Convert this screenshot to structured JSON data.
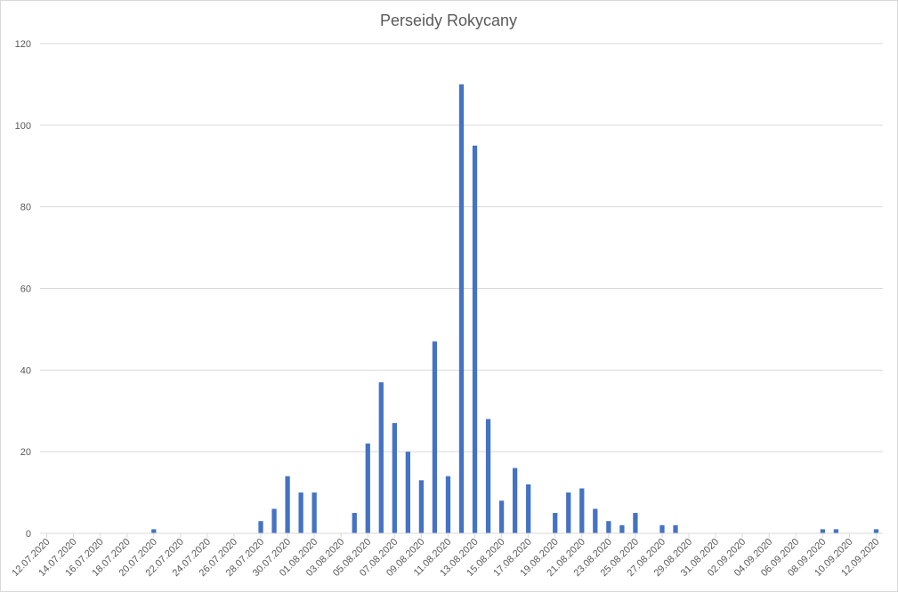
{
  "chart_data": {
    "type": "bar",
    "title": "Perseidy Rokycany",
    "xlabel": "",
    "ylabel": "",
    "ylim": [
      0,
      120
    ],
    "yticks": [
      0,
      20,
      40,
      60,
      80,
      100,
      120
    ],
    "grid": true,
    "legend": "none",
    "bar_color": "#4472c4",
    "categories": [
      "12.07.2020",
      "13.07.2020",
      "14.07.2020",
      "15.07.2020",
      "16.07.2020",
      "17.07.2020",
      "18.07.2020",
      "19.07.2020",
      "20.07.2020",
      "21.07.2020",
      "22.07.2020",
      "23.07.2020",
      "24.07.2020",
      "25.07.2020",
      "26.07.2020",
      "27.07.2020",
      "28.07.2020",
      "29.07.2020",
      "30.07.2020",
      "31.07.2020",
      "01.08.2020",
      "02.08.2020",
      "03.08.2020",
      "04.08.2020",
      "05.08.2020",
      "06.08.2020",
      "07.08.2020",
      "08.08.2020",
      "09.08.2020",
      "10.08.2020",
      "11.08.2020",
      "12.08.2020",
      "13.08.2020",
      "14.08.2020",
      "15.08.2020",
      "16.08.2020",
      "17.08.2020",
      "18.08.2020",
      "19.08.2020",
      "20.08.2020",
      "21.08.2020",
      "22.08.2020",
      "23.08.2020",
      "24.08.2020",
      "25.08.2020",
      "26.08.2020",
      "27.08.2020",
      "28.08.2020",
      "29.08.2020",
      "30.08.2020",
      "31.08.2020",
      "01.09.2020",
      "02.09.2020",
      "03.09.2020",
      "04.09.2020",
      "05.09.2020",
      "06.09.2020",
      "07.09.2020",
      "08.09.2020",
      "09.09.2020",
      "10.09.2020",
      "11.09.2020",
      "12.09.2020"
    ],
    "values": [
      0,
      0,
      0,
      0,
      0,
      0,
      0,
      0,
      1,
      0,
      0,
      0,
      0,
      0,
      0,
      0,
      3,
      6,
      14,
      10,
      10,
      0,
      0,
      5,
      22,
      37,
      27,
      20,
      13,
      47,
      14,
      110,
      95,
      28,
      8,
      16,
      12,
      0,
      5,
      10,
      11,
      6,
      3,
      2,
      5,
      0,
      2,
      2,
      0,
      0,
      0,
      0,
      0,
      0,
      0,
      0,
      0,
      0,
      1,
      1,
      0,
      0,
      1
    ],
    "xtick_labels": [
      "12.07.2020",
      "14.07.2020",
      "16.07.2020",
      "18.07.2020",
      "20.07.2020",
      "22.07.2020",
      "24.07.2020",
      "26.07.2020",
      "28.07.2020",
      "30.07.2020",
      "01.08.2020",
      "03.08.2020",
      "05.08.2020",
      "07.08.2020",
      "09.08.2020",
      "11.08.2020",
      "13.08.2020",
      "15.08.2020",
      "17.08.2020",
      "19.08.2020",
      "21.08.2020",
      "23.08.2020",
      "25.08.2020",
      "27.08.2020",
      "29.08.2020",
      "31.08.2020",
      "02.09.2020",
      "04.09.2020",
      "06.09.2020",
      "08.09.2020",
      "10.09.2020",
      "12.09.2020"
    ]
  }
}
